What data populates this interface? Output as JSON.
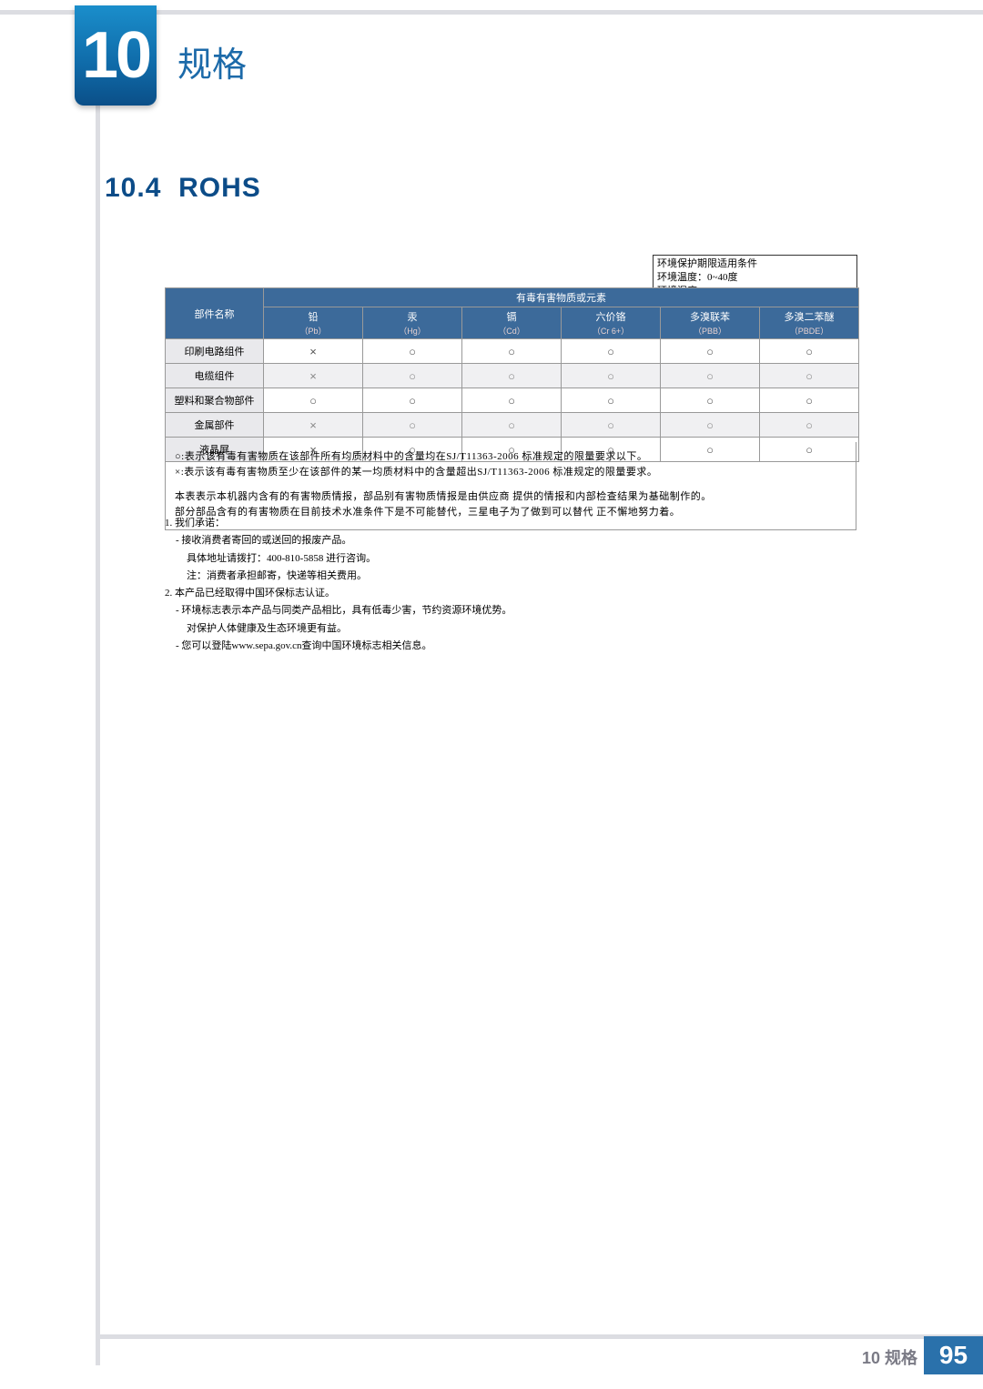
{
  "header": {
    "chapter_number": "10",
    "chapter_title": "规格"
  },
  "section": {
    "number": "10.4",
    "title": "ROHS"
  },
  "env_box": {
    "line1": "环境保护期限适用条件",
    "line2": "环境温度：0~40度",
    "line3": "环境湿度：10%~80%"
  },
  "table": {
    "corner_label": "部件名称",
    "group_header": "有毒有害物质或元素",
    "columns": [
      {
        "name": "铅",
        "sub": "（Pb）"
      },
      {
        "name": "汞",
        "sub": "（Hg）"
      },
      {
        "name": "镉",
        "sub": "（Cd）"
      },
      {
        "name": "六价铬",
        "sub": "（Cr 6+）"
      },
      {
        "name": "多溴联苯",
        "sub": "（PBB）"
      },
      {
        "name": "多溴二苯醚",
        "sub": "（PBDE）"
      }
    ],
    "rows": [
      {
        "label": "印刷电路组件",
        "cells": [
          "×",
          "○",
          "○",
          "○",
          "○",
          "○"
        ],
        "alt": false
      },
      {
        "label": "电缆组件",
        "cells": [
          "×",
          "○",
          "○",
          "○",
          "○",
          "○"
        ],
        "alt": true
      },
      {
        "label": "塑料和聚合物部件",
        "cells": [
          "○",
          "○",
          "○",
          "○",
          "○",
          "○"
        ],
        "alt": false
      },
      {
        "label": "金属部件",
        "cells": [
          "×",
          "○",
          "○",
          "○",
          "○",
          "○"
        ],
        "alt": true
      },
      {
        "label": "液晶屏",
        "cells": [
          "×",
          "○",
          "○",
          "○",
          "○",
          "○"
        ],
        "alt": false
      }
    ],
    "notes": {
      "n1": "○:表示该有毒有害物质在该部件所有均质材料中的含量均在SJ/T11363-2006 标准规定的限量要求以下。",
      "n2": "×:表示该有毒有害物质至少在该部件的某一均质材料中的含量超出SJ/T11363-2006  标准规定的限量要求。",
      "n3": "本表表示本机器内含有的有害物质情报，部品别有害物质情报是由供应商  提供的情报和内部检查结果为基础制作的。",
      "n4": "部分部品含有的有害物质在目前技术水准条件下是不可能替代，三星电子为了做到可以替代  正不懈地努力着。"
    }
  },
  "footnotes": {
    "f1": "1. 我们承诺：",
    "f2": "- 接收消费者寄回的或送回的报废产品。",
    "f3": "具体地址请拨打：400-810-5858 进行咨询。",
    "f4": "注：消费者承担邮寄，快递等相关费用。",
    "f5": "2. 本产品已经取得中国环保标志认证。",
    "f6": "- 环境标志表示本产品与同类产品相比，具有低毒少害，节约资源环境优势。",
    "f7": "对保护人体健康及生态环境更有益。",
    "f8": "- 您可以登陆www.sepa.gov.cn查询中国环境标志相关信息。"
  },
  "footer": {
    "chapter_ref": "10 规格",
    "page_number": "95"
  },
  "colors": {
    "header_blue": "#3c6a9a",
    "title_blue": "#0c4c88",
    "accent_blue": "#2a71ab",
    "row_label_bg": "#e9e9ec",
    "row_alt_bg": "#f0f0f2",
    "border_gray": "#dcdde2"
  }
}
